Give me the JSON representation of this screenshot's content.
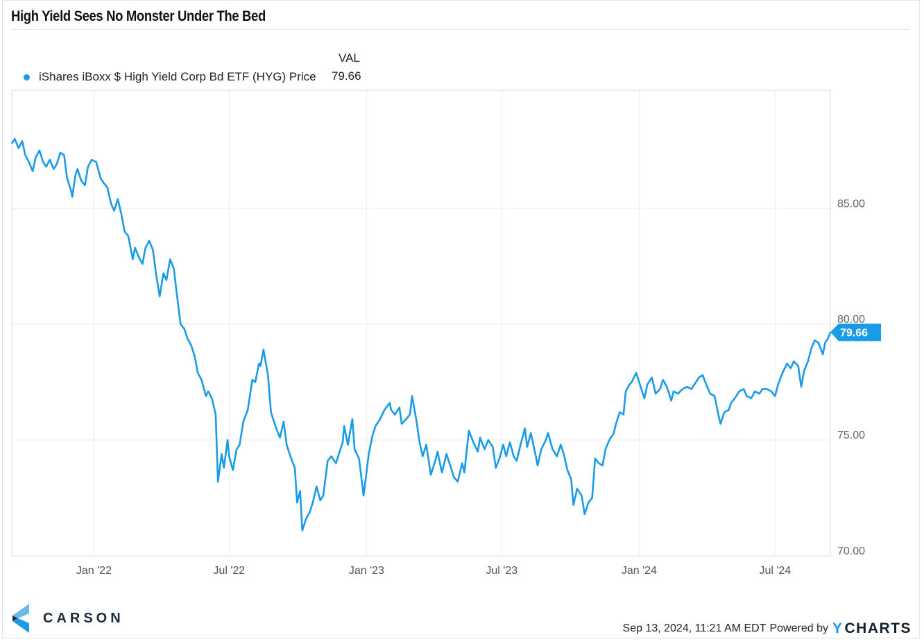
{
  "header": {
    "title": "High Yield Sees No Monster Under The Bed"
  },
  "legend": {
    "column_header": "VAL",
    "items": [
      {
        "label": "iShares iBoxx $ High Yield Corp Bd ETF (HYG) Price",
        "value": "79.66",
        "color": "#1a9be6"
      }
    ]
  },
  "footer": {
    "logo_text": "CARSON",
    "timestamp": "Sep 13, 2024, 11:21 AM EDT",
    "powered_by": "Powered by",
    "brand_y": "Y",
    "brand_rest": "CHARTS"
  },
  "chart_data": {
    "type": "line",
    "title": "High Yield Sees No Monster Under The Bed",
    "xlabel": "",
    "ylabel": "",
    "y_axis_side": "right",
    "ylim": [
      70,
      90.1
    ],
    "yticks": [
      70,
      75,
      80,
      85
    ],
    "ytick_labels": [
      "70.00",
      "75.00",
      "80.00",
      "85.00"
    ],
    "xlim": [
      "2021-09-13",
      "2024-09-13"
    ],
    "xticks": [
      "2022-01-01",
      "2022-07-01",
      "2023-01-01",
      "2023-07-01",
      "2024-01-01",
      "2024-07-01"
    ],
    "xtick_labels": [
      "Jan '22",
      "Jul '22",
      "Jan '23",
      "Jul '23",
      "Jan '24",
      "Jul '24"
    ],
    "grid": true,
    "legend_position": "top-left",
    "last_value_flag": "79.66",
    "series": [
      {
        "name": "iShares iBoxx $ High Yield Corp Bd ETF (HYG) Price",
        "color": "#1a9be6",
        "points": [
          [
            "2021-09-13",
            87.8
          ],
          [
            "2021-09-17",
            88.0
          ],
          [
            "2021-09-22",
            87.6
          ],
          [
            "2021-09-27",
            87.9
          ],
          [
            "2021-10-01",
            87.3
          ],
          [
            "2021-10-06",
            87.0
          ],
          [
            "2021-10-11",
            86.6
          ],
          [
            "2021-10-15",
            87.2
          ],
          [
            "2021-10-20",
            87.5
          ],
          [
            "2021-10-25",
            87.0
          ],
          [
            "2021-10-29",
            86.8
          ],
          [
            "2021-11-03",
            87.1
          ],
          [
            "2021-11-08",
            86.7
          ],
          [
            "2021-11-12",
            86.9
          ],
          [
            "2021-11-17",
            87.4
          ],
          [
            "2021-11-22",
            87.3
          ],
          [
            "2021-11-26",
            86.3
          ],
          [
            "2021-12-01",
            85.8
          ],
          [
            "2021-12-03",
            85.5
          ],
          [
            "2021-12-07",
            86.4
          ],
          [
            "2021-12-10",
            86.7
          ],
          [
            "2021-12-15",
            86.2
          ],
          [
            "2021-12-20",
            86.0
          ],
          [
            "2021-12-24",
            86.8
          ],
          [
            "2021-12-29",
            87.1
          ],
          [
            "2022-01-04",
            87.0
          ],
          [
            "2022-01-10",
            86.3
          ],
          [
            "2022-01-14",
            86.1
          ],
          [
            "2022-01-19",
            85.9
          ],
          [
            "2022-01-24",
            85.2
          ],
          [
            "2022-01-28",
            84.9
          ],
          [
            "2022-02-02",
            85.4
          ],
          [
            "2022-02-07",
            84.7
          ],
          [
            "2022-02-11",
            84.0
          ],
          [
            "2022-02-16",
            83.8
          ],
          [
            "2022-02-22",
            82.8
          ],
          [
            "2022-02-25",
            83.3
          ],
          [
            "2022-03-02",
            82.9
          ],
          [
            "2022-03-07",
            82.6
          ],
          [
            "2022-03-11",
            83.3
          ],
          [
            "2022-03-16",
            83.6
          ],
          [
            "2022-03-21",
            83.2
          ],
          [
            "2022-03-25",
            82.2
          ],
          [
            "2022-03-30",
            81.2
          ],
          [
            "2022-04-04",
            82.2
          ],
          [
            "2022-04-08",
            81.9
          ],
          [
            "2022-04-13",
            82.8
          ],
          [
            "2022-04-18",
            82.4
          ],
          [
            "2022-04-22",
            81.3
          ],
          [
            "2022-04-27",
            80.0
          ],
          [
            "2022-05-02",
            79.8
          ],
          [
            "2022-05-06",
            79.4
          ],
          [
            "2022-05-11",
            79.1
          ],
          [
            "2022-05-16",
            78.6
          ],
          [
            "2022-05-20",
            77.9
          ],
          [
            "2022-05-25",
            77.6
          ],
          [
            "2022-05-31",
            76.9
          ],
          [
            "2022-06-03",
            77.1
          ],
          [
            "2022-06-08",
            76.8
          ],
          [
            "2022-06-13",
            76.1
          ],
          [
            "2022-06-16",
            73.2
          ],
          [
            "2022-06-21",
            74.4
          ],
          [
            "2022-06-24",
            73.8
          ],
          [
            "2022-06-29",
            75.0
          ],
          [
            "2022-07-01",
            74.3
          ],
          [
            "2022-07-06",
            73.7
          ],
          [
            "2022-07-11",
            74.6
          ],
          [
            "2022-07-15",
            74.8
          ],
          [
            "2022-07-20",
            75.8
          ],
          [
            "2022-07-26",
            76.3
          ],
          [
            "2022-08-01",
            77.6
          ],
          [
            "2022-08-05",
            77.5
          ],
          [
            "2022-08-10",
            78.3
          ],
          [
            "2022-08-12",
            78.2
          ],
          [
            "2022-08-16",
            78.9
          ],
          [
            "2022-08-22",
            77.8
          ],
          [
            "2022-08-26",
            76.2
          ],
          [
            "2022-09-01",
            75.6
          ],
          [
            "2022-09-07",
            75.1
          ],
          [
            "2022-09-12",
            75.8
          ],
          [
            "2022-09-16",
            74.8
          ],
          [
            "2022-09-21",
            74.3
          ],
          [
            "2022-09-27",
            73.8
          ],
          [
            "2022-09-30",
            72.3
          ],
          [
            "2022-10-04",
            72.8
          ],
          [
            "2022-10-07",
            71.1
          ],
          [
            "2022-10-12",
            71.6
          ],
          [
            "2022-10-17",
            71.9
          ],
          [
            "2022-10-21",
            72.3
          ],
          [
            "2022-10-26",
            73.0
          ],
          [
            "2022-10-31",
            72.4
          ],
          [
            "2022-11-04",
            72.6
          ],
          [
            "2022-11-10",
            74.1
          ],
          [
            "2022-11-15",
            74.3
          ],
          [
            "2022-11-21",
            74.0
          ],
          [
            "2022-11-25",
            74.4
          ],
          [
            "2022-11-30",
            74.9
          ],
          [
            "2022-12-02",
            75.6
          ],
          [
            "2022-12-07",
            74.8
          ],
          [
            "2022-12-13",
            75.9
          ],
          [
            "2022-12-16",
            74.6
          ],
          [
            "2022-12-22",
            74.2
          ],
          [
            "2022-12-28",
            72.6
          ],
          [
            "2023-01-04",
            74.4
          ],
          [
            "2023-01-09",
            75.2
          ],
          [
            "2023-01-13",
            75.6
          ],
          [
            "2023-01-19",
            75.9
          ],
          [
            "2023-01-25",
            76.3
          ],
          [
            "2023-02-01",
            76.6
          ],
          [
            "2023-02-03",
            76.3
          ],
          [
            "2023-02-08",
            76.1
          ],
          [
            "2023-02-14",
            76.4
          ],
          [
            "2023-02-17",
            75.7
          ],
          [
            "2023-02-23",
            75.9
          ],
          [
            "2023-02-28",
            76.1
          ],
          [
            "2023-03-03",
            76.9
          ],
          [
            "2023-03-09",
            75.8
          ],
          [
            "2023-03-13",
            74.9
          ],
          [
            "2023-03-17",
            74.3
          ],
          [
            "2023-03-22",
            74.8
          ],
          [
            "2023-03-28",
            73.5
          ],
          [
            "2023-04-03",
            74.1
          ],
          [
            "2023-04-06",
            74.5
          ],
          [
            "2023-04-12",
            73.6
          ],
          [
            "2023-04-18",
            74.4
          ],
          [
            "2023-04-24",
            73.8
          ],
          [
            "2023-04-28",
            73.4
          ],
          [
            "2023-05-03",
            73.2
          ],
          [
            "2023-05-09",
            74.0
          ],
          [
            "2023-05-12",
            73.6
          ],
          [
            "2023-05-18",
            75.4
          ],
          [
            "2023-05-24",
            74.9
          ],
          [
            "2023-05-30",
            74.5
          ],
          [
            "2023-06-02",
            75.1
          ],
          [
            "2023-06-08",
            74.6
          ],
          [
            "2023-06-13",
            75.0
          ],
          [
            "2023-06-19",
            74.7
          ],
          [
            "2023-06-23",
            73.8
          ],
          [
            "2023-06-28",
            74.2
          ],
          [
            "2023-07-03",
            74.8
          ],
          [
            "2023-07-07",
            74.3
          ],
          [
            "2023-07-12",
            74.9
          ],
          [
            "2023-07-17",
            74.3
          ],
          [
            "2023-07-21",
            74.1
          ],
          [
            "2023-07-27",
            74.9
          ],
          [
            "2023-08-01",
            75.5
          ],
          [
            "2023-08-04",
            74.7
          ],
          [
            "2023-08-09",
            75.3
          ],
          [
            "2023-08-15",
            74.4
          ],
          [
            "2023-08-18",
            73.9
          ],
          [
            "2023-08-23",
            74.6
          ],
          [
            "2023-08-29",
            75.0
          ],
          [
            "2023-09-01",
            75.3
          ],
          [
            "2023-09-07",
            74.6
          ],
          [
            "2023-09-13",
            74.3
          ],
          [
            "2023-09-18",
            74.8
          ],
          [
            "2023-09-22",
            74.4
          ],
          [
            "2023-09-27",
            73.7
          ],
          [
            "2023-10-02",
            73.3
          ],
          [
            "2023-10-05",
            72.2
          ],
          [
            "2023-10-10",
            72.9
          ],
          [
            "2023-10-16",
            72.6
          ],
          [
            "2023-10-20",
            71.8
          ],
          [
            "2023-10-25",
            72.3
          ],
          [
            "2023-10-30",
            72.5
          ],
          [
            "2023-11-03",
            74.2
          ],
          [
            "2023-11-08",
            74.0
          ],
          [
            "2023-11-13",
            73.9
          ],
          [
            "2023-11-17",
            74.6
          ],
          [
            "2023-11-22",
            75.0
          ],
          [
            "2023-11-28",
            75.3
          ],
          [
            "2023-12-01",
            75.7
          ],
          [
            "2023-12-06",
            76.2
          ],
          [
            "2023-12-11",
            76.1
          ],
          [
            "2023-12-14",
            77.1
          ],
          [
            "2023-12-19",
            77.4
          ],
          [
            "2023-12-22",
            77.5
          ],
          [
            "2023-12-28",
            77.9
          ],
          [
            "2024-01-03",
            77.3
          ],
          [
            "2024-01-08",
            76.8
          ],
          [
            "2024-01-12",
            77.4
          ],
          [
            "2024-01-18",
            77.7
          ],
          [
            "2024-01-23",
            77.0
          ],
          [
            "2024-01-29",
            77.2
          ],
          [
            "2024-02-02",
            77.6
          ],
          [
            "2024-02-07",
            77.3
          ],
          [
            "2024-02-13",
            76.7
          ],
          [
            "2024-02-16",
            77.1
          ],
          [
            "2024-02-22",
            77.0
          ],
          [
            "2024-02-28",
            77.2
          ],
          [
            "2024-03-05",
            77.3
          ],
          [
            "2024-03-11",
            77.2
          ],
          [
            "2024-03-15",
            77.4
          ],
          [
            "2024-03-21",
            77.7
          ],
          [
            "2024-03-26",
            77.8
          ],
          [
            "2024-04-01",
            77.3
          ],
          [
            "2024-04-05",
            77.0
          ],
          [
            "2024-04-11",
            76.9
          ],
          [
            "2024-04-16",
            76.1
          ],
          [
            "2024-04-19",
            75.7
          ],
          [
            "2024-04-24",
            76.2
          ],
          [
            "2024-04-30",
            76.3
          ],
          [
            "2024-05-03",
            76.6
          ],
          [
            "2024-05-08",
            76.8
          ],
          [
            "2024-05-14",
            77.1
          ],
          [
            "2024-05-20",
            77.2
          ],
          [
            "2024-05-24",
            76.9
          ],
          [
            "2024-05-30",
            76.8
          ],
          [
            "2024-06-04",
            77.1
          ],
          [
            "2024-06-10",
            77.0
          ],
          [
            "2024-06-14",
            77.2
          ],
          [
            "2024-06-20",
            77.2
          ],
          [
            "2024-06-26",
            77.1
          ],
          [
            "2024-07-01",
            76.9
          ],
          [
            "2024-07-05",
            77.4
          ],
          [
            "2024-07-11",
            77.9
          ],
          [
            "2024-07-17",
            78.3
          ],
          [
            "2024-07-22",
            78.1
          ],
          [
            "2024-07-26",
            78.4
          ],
          [
            "2024-08-01",
            78.2
          ],
          [
            "2024-08-05",
            77.3
          ],
          [
            "2024-08-09",
            78.0
          ],
          [
            "2024-08-14",
            78.4
          ],
          [
            "2024-08-19",
            79.0
          ],
          [
            "2024-08-23",
            79.3
          ],
          [
            "2024-08-28",
            79.2
          ],
          [
            "2024-09-03",
            78.7
          ],
          [
            "2024-09-06",
            79.2
          ],
          [
            "2024-09-10",
            79.4
          ],
          [
            "2024-09-13",
            79.66
          ]
        ]
      }
    ]
  }
}
